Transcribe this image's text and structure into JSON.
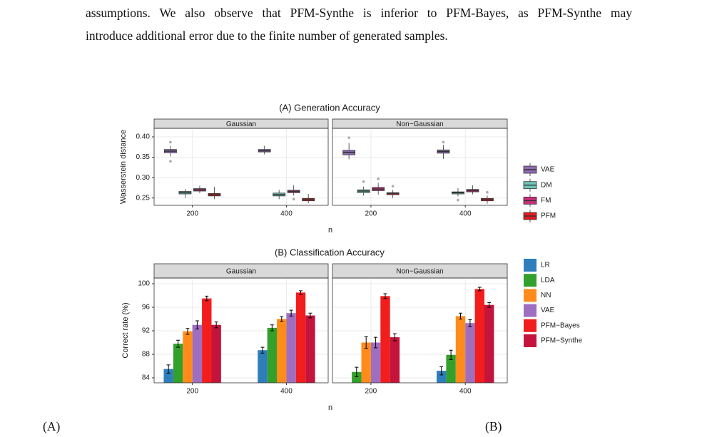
{
  "paragraph": {
    "lines": [
      "assumptions. We also observe that PFM-Synthe is inferior to PFM-Bayes, as PFM-Synthe may",
      "introduce additional error due to the finite number of generated samples."
    ]
  },
  "chart_data": [
    {
      "type": "boxplot",
      "title": "(A) Generation Accuracy",
      "facets": [
        "Gaussian",
        "Non−Gaussian"
      ],
      "categories": [
        "200",
        "400"
      ],
      "x_label": "n",
      "y_label": "Wasserstein distance",
      "ylim": [
        0.232,
        0.421
      ],
      "yticks": [
        0.25,
        {
          "value": 0.3,
          "label": "0.30"
        },
        0.35,
        {
          "value": 0.4,
          "label": "0.40"
        }
      ],
      "grid": true,
      "series": [
        {
          "name": "VAE",
          "color": "#8e6bb5",
          "values": [
            [
              {
                "min": 0.352,
                "q1": 0.361,
                "median": 0.365,
                "q3": 0.369,
                "max": 0.378,
                "outliers": [
                  0.387,
                  0.34
                ]
              },
              {
                "min": 0.357,
                "q1": 0.363,
                "median": 0.366,
                "q3": 0.369,
                "max": 0.378,
                "outliers": []
              }
            ],
            [
              {
                "min": 0.345,
                "q1": 0.356,
                "median": 0.362,
                "q3": 0.367,
                "max": 0.385,
                "outliers": [
                  0.398
                ]
              },
              {
                "min": 0.346,
                "q1": 0.36,
                "median": 0.364,
                "q3": 0.368,
                "max": 0.38,
                "outliers": [
                  0.387
                ]
              }
            ]
          ]
        },
        {
          "name": "DM",
          "color": "#6fc5b8",
          "values": [
            [
              {
                "min": 0.25,
                "q1": 0.26,
                "median": 0.263,
                "q3": 0.266,
                "max": 0.272,
                "outliers": []
              },
              {
                "min": 0.247,
                "q1": 0.255,
                "median": 0.258,
                "q3": 0.262,
                "max": 0.27,
                "outliers": []
              }
            ],
            [
              {
                "min": 0.256,
                "q1": 0.263,
                "median": 0.267,
                "q3": 0.27,
                "max": 0.278,
                "outliers": [
                  0.29
                ]
              },
              {
                "min": 0.254,
                "q1": 0.26,
                "median": 0.263,
                "q3": 0.265,
                "max": 0.274,
                "outliers": [
                  0.245
                ]
              }
            ]
          ]
        },
        {
          "name": "FM",
          "color": "#c8307a",
          "values": [
            [
              {
                "min": 0.262,
                "q1": 0.267,
                "median": 0.27,
                "q3": 0.273,
                "max": 0.28,
                "outliers": []
              },
              {
                "min": 0.256,
                "q1": 0.263,
                "median": 0.266,
                "q3": 0.269,
                "max": 0.281,
                "outliers": [
                  0.247
                ]
              }
            ],
            [
              {
                "min": 0.258,
                "q1": 0.268,
                "median": 0.272,
                "q3": 0.276,
                "max": 0.287,
                "outliers": [
                  0.297
                ]
              },
              {
                "min": 0.259,
                "q1": 0.265,
                "median": 0.268,
                "q3": 0.271,
                "max": 0.281,
                "outliers": []
              }
            ]
          ]
        },
        {
          "name": "PFM",
          "color": "#e31a1c",
          "values": [
            [
              {
                "min": 0.247,
                "q1": 0.255,
                "median": 0.258,
                "q3": 0.261,
                "max": 0.277,
                "outliers": []
              },
              {
                "min": 0.237,
                "q1": 0.243,
                "median": 0.246,
                "q3": 0.249,
                "max": 0.26,
                "outliers": []
              }
            ],
            [
              {
                "min": 0.25,
                "q1": 0.258,
                "median": 0.261,
                "q3": 0.263,
                "max": 0.27,
                "outliers": [
                  0.279
                ]
              },
              {
                "min": 0.236,
                "q1": 0.243,
                "median": 0.246,
                "q3": 0.249,
                "max": 0.256,
                "outliers": [
                  0.264
                ]
              }
            ]
          ]
        }
      ]
    },
    {
      "type": "bar",
      "title": "(B) Classification Accuracy",
      "facets": [
        "Gaussian",
        "Non−Gaussian"
      ],
      "categories": [
        "200",
        "400"
      ],
      "x_label": "n",
      "y_label": "Correct rate (%)",
      "ylim": [
        83.15,
        100.97
      ],
      "yticks": [
        84,
        88,
        92,
        96,
        100
      ],
      "grid": true,
      "series": [
        {
          "name": "LR",
          "color": "#2f7ebc",
          "values": [
            [
              85.5,
              88.7
            ],
            [
              null,
              85.2
            ]
          ],
          "errors": [
            [
              0.7,
              0.5
            ],
            [
              null,
              0.7
            ]
          ]
        },
        {
          "name": "LDA",
          "color": "#33a02c",
          "values": [
            [
              89.8,
              92.5
            ],
            [
              85.0,
              87.9
            ]
          ],
          "errors": [
            [
              0.6,
              0.5
            ],
            [
              0.8,
              0.8
            ]
          ]
        },
        {
          "name": "NN",
          "color": "#ff8c1a",
          "values": [
            [
              91.9,
              94.0
            ],
            [
              90.0,
              94.5
            ]
          ],
          "errors": [
            [
              0.5,
              0.4
            ],
            [
              1.0,
              0.5
            ]
          ]
        },
        {
          "name": "VAE",
          "color": "#9e6fc0",
          "values": [
            [
              93.0,
              95.0
            ],
            [
              90.0,
              93.3
            ]
          ],
          "errors": [
            [
              0.7,
              0.5
            ],
            [
              0.9,
              0.6
            ]
          ]
        },
        {
          "name": "PFM−Bayes",
          "color": "#f21d1d",
          "values": [
            [
              97.5,
              98.5
            ],
            [
              97.9,
              99.1
            ]
          ],
          "errors": [
            [
              0.4,
              0.3
            ],
            [
              0.4,
              0.3
            ]
          ]
        },
        {
          "name": "PFM−Synthe",
          "color": "#c4143b",
          "values": [
            [
              93.0,
              94.6
            ],
            [
              90.9,
              96.4
            ]
          ],
          "errors": [
            [
              0.5,
              0.4
            ],
            [
              0.6,
              0.4
            ]
          ]
        }
      ]
    }
  ],
  "footer": {
    "fragments": [
      "(A)",
      "(B)"
    ]
  }
}
